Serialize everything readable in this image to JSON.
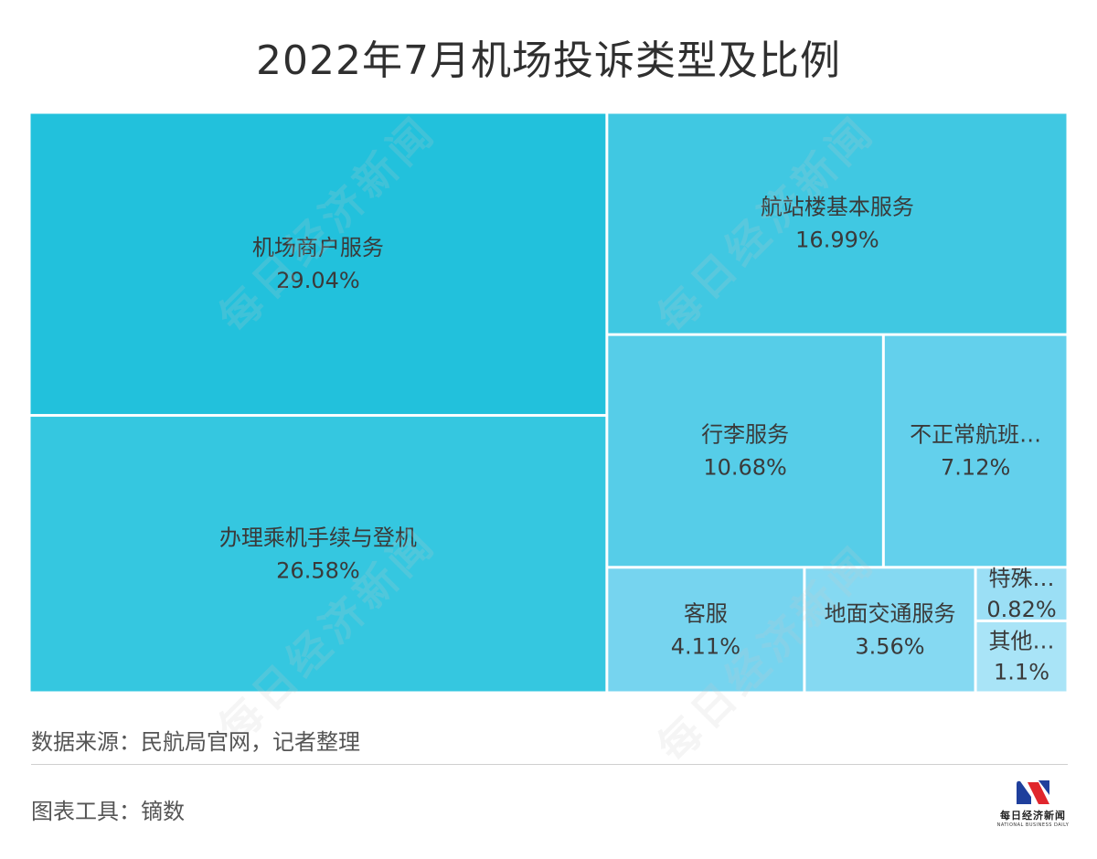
{
  "title": "2022年7月机场投诉类型及比例",
  "source": "数据来源：民航局官网，记者整理",
  "tool": "图表工具：镝数",
  "watermark": "每日经济新闻",
  "logo": {
    "cn": "每日经济新闻",
    "en": "NATIONAL BUSINESS DAILY"
  },
  "chart_data": {
    "type": "treemap",
    "title": "2022年7月机场投诉类型及比例",
    "unit": "%",
    "items": [
      {
        "name": "机场商户服务",
        "label": "机场商户服务",
        "value": 29.04,
        "value_label": "29.04%",
        "color": "#22c1dc"
      },
      {
        "name": "办理乘机手续与登机",
        "label": "办理乘机手续与登机",
        "value": 26.58,
        "value_label": "26.58%",
        "color": "#35c7e0"
      },
      {
        "name": "航站楼基本服务",
        "label": "航站楼基本服务",
        "value": 16.99,
        "value_label": "16.99%",
        "color": "#40c8e2"
      },
      {
        "name": "行李服务",
        "label": "行李服务",
        "value": 10.68,
        "value_label": "10.68%",
        "color": "#56cde8"
      },
      {
        "name": "不正常航班服务",
        "label": "不正常航班…",
        "value": 7.12,
        "value_label": "7.12%",
        "color": "#63d0ec"
      },
      {
        "name": "客服",
        "label": "客服",
        "value": 4.11,
        "value_label": "4.11%",
        "color": "#76d4ef"
      },
      {
        "name": "地面交通服务",
        "label": "地面交通服务",
        "value": 3.56,
        "value_label": "3.56%",
        "color": "#85d9f2"
      },
      {
        "name": "特殊旅客服务",
        "label": "特殊…",
        "value": 0.82,
        "value_label": "0.82%",
        "color": "#9bdff5"
      },
      {
        "name": "其他",
        "label": "其他…",
        "value": 1.1,
        "value_label": "1.1%",
        "color": "#a9e4f7"
      }
    ]
  }
}
